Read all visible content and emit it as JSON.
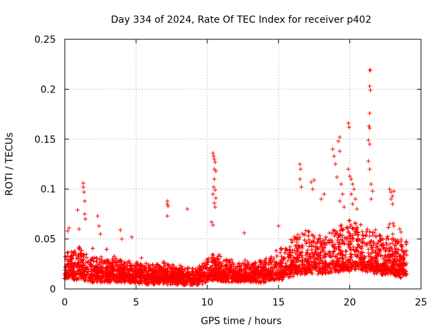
{
  "chart_data": {
    "type": "scatter",
    "title": "Day 334 of 2024, Rate Of TEC Index for receiver p402",
    "xlabel": "GPS time / hours",
    "ylabel": "ROTI / TECUs",
    "xlim": [
      0,
      25
    ],
    "ylim": [
      0,
      0.25
    ],
    "xticks": [
      0,
      5,
      10,
      15,
      20,
      25
    ],
    "yticks": [
      0,
      0.05,
      0.1,
      0.15,
      0.2,
      0.25
    ],
    "xtick_labels": [
      "0",
      "5",
      "10",
      "15",
      "20",
      "25"
    ],
    "ytick_labels": [
      "0",
      "0.05",
      "0.1",
      "0.15",
      "0.2",
      "0.25"
    ],
    "grid": true,
    "marker": "+",
    "series": [
      {
        "name": "ROTI",
        "color": "#ff0000",
        "profile_hours": [
          0,
          0.5,
          1,
          1.5,
          2,
          3,
          4,
          5,
          6,
          7,
          8,
          9,
          9.5,
          10,
          10.5,
          11,
          12,
          13,
          14,
          15,
          16,
          16.5,
          17,
          18,
          19,
          20,
          20.5,
          21,
          21.5,
          22,
          23,
          24
        ],
        "profile_base": [
          0.015,
          0.016,
          0.017,
          0.016,
          0.014,
          0.014,
          0.014,
          0.013,
          0.012,
          0.012,
          0.012,
          0.011,
          0.012,
          0.014,
          0.016,
          0.015,
          0.014,
          0.014,
          0.014,
          0.016,
          0.02,
          0.022,
          0.022,
          0.022,
          0.024,
          0.025,
          0.026,
          0.024,
          0.023,
          0.022,
          0.02,
          0.018
        ],
        "profile_spread": [
          0.02,
          0.025,
          0.03,
          0.025,
          0.02,
          0.02,
          0.018,
          0.015,
          0.014,
          0.016,
          0.013,
          0.012,
          0.015,
          0.02,
          0.022,
          0.02,
          0.016,
          0.018,
          0.018,
          0.025,
          0.035,
          0.04,
          0.04,
          0.035,
          0.04,
          0.045,
          0.045,
          0.04,
          0.04,
          0.038,
          0.035,
          0.03
        ],
        "outliers": [
          {
            "x": 0.2,
            "y": 0.058
          },
          {
            "x": 0.3,
            "y": 0.061
          },
          {
            "x": 0.9,
            "y": 0.079
          },
          {
            "x": 1.0,
            "y": 0.06
          },
          {
            "x": 1.3,
            "y": 0.106
          },
          {
            "x": 1.3,
            "y": 0.102
          },
          {
            "x": 1.35,
            "y": 0.097
          },
          {
            "x": 1.4,
            "y": 0.088
          },
          {
            "x": 1.4,
            "y": 0.075
          },
          {
            "x": 1.45,
            "y": 0.07
          },
          {
            "x": 2.3,
            "y": 0.073
          },
          {
            "x": 2.4,
            "y": 0.063
          },
          {
            "x": 2.5,
            "y": 0.055
          },
          {
            "x": 3.9,
            "y": 0.059
          },
          {
            "x": 4.0,
            "y": 0.05
          },
          {
            "x": 4.7,
            "y": 0.052
          },
          {
            "x": 7.2,
            "y": 0.088
          },
          {
            "x": 7.2,
            "y": 0.085
          },
          {
            "x": 7.25,
            "y": 0.083
          },
          {
            "x": 7.2,
            "y": 0.073
          },
          {
            "x": 8.6,
            "y": 0.08
          },
          {
            "x": 10.4,
            "y": 0.136
          },
          {
            "x": 10.45,
            "y": 0.133
          },
          {
            "x": 10.5,
            "y": 0.13
          },
          {
            "x": 10.55,
            "y": 0.127
          },
          {
            "x": 10.5,
            "y": 0.12
          },
          {
            "x": 10.6,
            "y": 0.118
          },
          {
            "x": 10.5,
            "y": 0.11
          },
          {
            "x": 10.45,
            "y": 0.102
          },
          {
            "x": 10.55,
            "y": 0.099
          },
          {
            "x": 10.4,
            "y": 0.095
          },
          {
            "x": 10.6,
            "y": 0.091
          },
          {
            "x": 10.5,
            "y": 0.086
          },
          {
            "x": 10.55,
            "y": 0.082
          },
          {
            "x": 10.3,
            "y": 0.067
          },
          {
            "x": 10.4,
            "y": 0.064
          },
          {
            "x": 12.6,
            "y": 0.056
          },
          {
            "x": 15.0,
            "y": 0.063
          },
          {
            "x": 16.5,
            "y": 0.125
          },
          {
            "x": 16.55,
            "y": 0.12
          },
          {
            "x": 16.5,
            "y": 0.11
          },
          {
            "x": 16.6,
            "y": 0.102
          },
          {
            "x": 17.3,
            "y": 0.107
          },
          {
            "x": 17.5,
            "y": 0.109
          },
          {
            "x": 17.4,
            "y": 0.1
          },
          {
            "x": 18.0,
            "y": 0.09
          },
          {
            "x": 18.2,
            "y": 0.095
          },
          {
            "x": 18.8,
            "y": 0.14
          },
          {
            "x": 18.9,
            "y": 0.133
          },
          {
            "x": 19.0,
            "y": 0.125
          },
          {
            "x": 19.2,
            "y": 0.148
          },
          {
            "x": 19.3,
            "y": 0.152
          },
          {
            "x": 19.3,
            "y": 0.138
          },
          {
            "x": 19.1,
            "y": 0.112
          },
          {
            "x": 19.4,
            "y": 0.105
          },
          {
            "x": 19.5,
            "y": 0.095
          },
          {
            "x": 19.3,
            "y": 0.088
          },
          {
            "x": 19.6,
            "y": 0.082
          },
          {
            "x": 19.9,
            "y": 0.166
          },
          {
            "x": 19.95,
            "y": 0.162
          },
          {
            "x": 19.9,
            "y": 0.12
          },
          {
            "x": 20.0,
            "y": 0.113
          },
          {
            "x": 20.1,
            "y": 0.11
          },
          {
            "x": 20.2,
            "y": 0.105
          },
          {
            "x": 20.3,
            "y": 0.1
          },
          {
            "x": 20.1,
            "y": 0.095
          },
          {
            "x": 20.4,
            "y": 0.09
          },
          {
            "x": 20.2,
            "y": 0.085
          },
          {
            "x": 20.5,
            "y": 0.08
          },
          {
            "x": 21.4,
            "y": 0.219
          },
          {
            "x": 21.45,
            "y": 0.219
          },
          {
            "x": 21.4,
            "y": 0.203
          },
          {
            "x": 21.45,
            "y": 0.199
          },
          {
            "x": 21.4,
            "y": 0.176
          },
          {
            "x": 21.35,
            "y": 0.163
          },
          {
            "x": 21.4,
            "y": 0.161
          },
          {
            "x": 21.3,
            "y": 0.149
          },
          {
            "x": 21.4,
            "y": 0.145
          },
          {
            "x": 21.3,
            "y": 0.128
          },
          {
            "x": 21.4,
            "y": 0.12
          },
          {
            "x": 21.5,
            "y": 0.105
          },
          {
            "x": 21.6,
            "y": 0.098
          },
          {
            "x": 21.5,
            "y": 0.09
          },
          {
            "x": 22.8,
            "y": 0.1
          },
          {
            "x": 22.9,
            "y": 0.097
          },
          {
            "x": 23.0,
            "y": 0.093
          },
          {
            "x": 23.1,
            "y": 0.098
          },
          {
            "x": 22.9,
            "y": 0.09
          },
          {
            "x": 23.0,
            "y": 0.085
          },
          {
            "x": 22.8,
            "y": 0.065
          },
          {
            "x": 23.1,
            "y": 0.063
          },
          {
            "x": 23.5,
            "y": 0.06
          },
          {
            "x": 23.6,
            "y": 0.057
          }
        ]
      }
    ]
  }
}
